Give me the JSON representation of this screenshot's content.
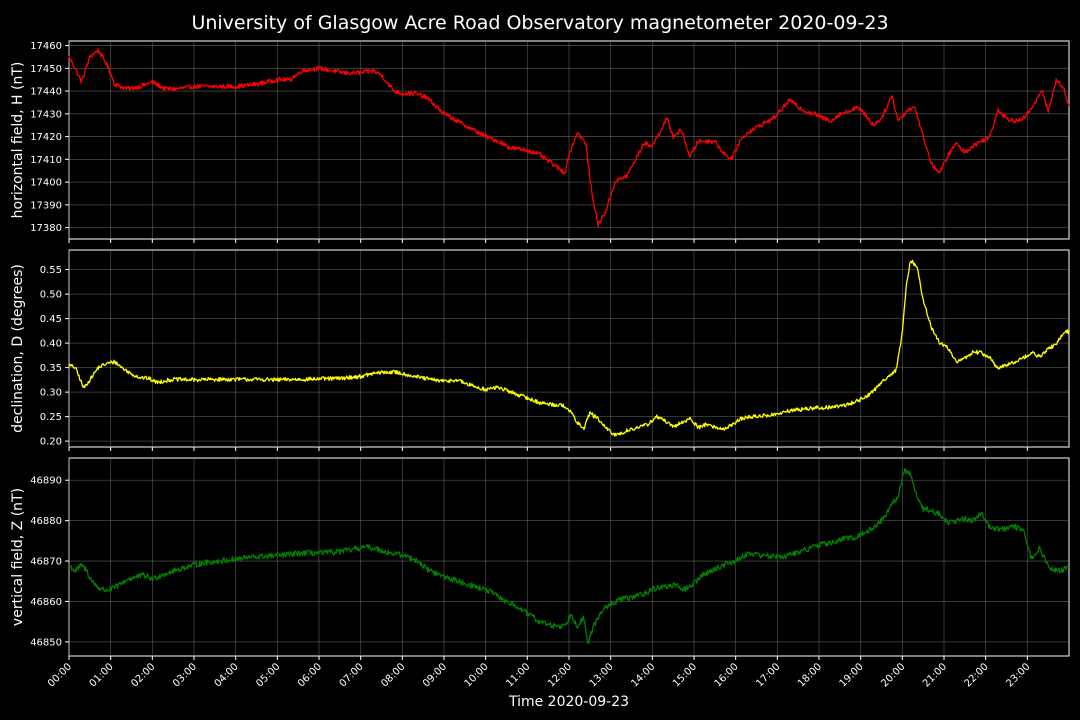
{
  "chart_data": {
    "type": "line",
    "title": "University of Glasgow Acre Road Observatory magnetometer 2020-09-23",
    "xlabel": "Time 2020-09-23",
    "x_unit": "hours",
    "xlim": [
      0,
      24
    ],
    "xticks": [
      0,
      1,
      2,
      3,
      4,
      5,
      6,
      7,
      8,
      9,
      10,
      11,
      12,
      13,
      14,
      15,
      16,
      17,
      18,
      19,
      20,
      21,
      22,
      23
    ],
    "xtick_labels": [
      "00:00",
      "01:00",
      "02:00",
      "03:00",
      "04:00",
      "05:00",
      "06:00",
      "07:00",
      "08:00",
      "09:00",
      "10:00",
      "11:00",
      "12:00",
      "13:00",
      "14:00",
      "15:00",
      "16:00",
      "17:00",
      "18:00",
      "19:00",
      "20:00",
      "21:00",
      "22:00",
      "23:00"
    ],
    "grid": true,
    "background": "#000000",
    "panels": [
      {
        "ylabel": "horizontal field, H (nT)",
        "color": "#ff0000",
        "ylim": [
          17375,
          17462
        ],
        "yticks": [
          17380,
          17390,
          17400,
          17410,
          17420,
          17430,
          17440,
          17450,
          17460
        ],
        "noise": 1.0,
        "x": [
          0,
          0.15,
          0.3,
          0.5,
          0.7,
          0.9,
          1.1,
          1.4,
          1.7,
          2.0,
          2.3,
          2.6,
          3.0,
          3.5,
          4.0,
          4.5,
          5.0,
          5.3,
          5.6,
          6.0,
          6.3,
          6.6,
          7.0,
          7.3,
          7.5,
          7.8,
          8.0,
          8.3,
          8.6,
          9.0,
          9.3,
          9.6,
          10.0,
          10.3,
          10.6,
          11.0,
          11.3,
          11.6,
          11.9,
          12.0,
          12.2,
          12.4,
          12.55,
          12.7,
          12.9,
          13.1,
          13.4,
          13.6,
          13.8,
          14.0,
          14.15,
          14.35,
          14.5,
          14.7,
          14.9,
          15.1,
          15.3,
          15.5,
          15.7,
          15.9,
          16.1,
          16.3,
          16.6,
          16.9,
          17.1,
          17.3,
          17.5,
          17.7,
          17.9,
          18.1,
          18.3,
          18.5,
          18.7,
          18.9,
          19.1,
          19.3,
          19.5,
          19.75,
          19.9,
          20.15,
          20.3,
          20.5,
          20.7,
          20.9,
          21.1,
          21.3,
          21.5,
          21.7,
          21.9,
          22.1,
          22.3,
          22.5,
          22.7,
          22.85,
          23.0,
          23.2,
          23.35,
          23.5,
          23.7,
          23.9,
          24.0
        ],
        "y": [
          17455,
          17450,
          17444,
          17455,
          17458,
          17452,
          17443,
          17441,
          17442,
          17444,
          17441,
          17441,
          17442,
          17442,
          17442,
          17443,
          17445,
          17445,
          17449,
          17450,
          17449,
          17448,
          17448,
          17449,
          17447,
          17440,
          17439,
          17439,
          17437,
          17430,
          17427,
          17424,
          17420,
          17418,
          17415,
          17414,
          17412,
          17408,
          17404,
          17412,
          17422,
          17417,
          17395,
          17381,
          17388,
          17400,
          17403,
          17410,
          17417,
          17416,
          17421,
          17428,
          17420,
          17423,
          17411,
          17418,
          17418,
          17418,
          17413,
          17410,
          17418,
          17422,
          17425,
          17428,
          17432,
          17436,
          17433,
          17431,
          17430,
          17428,
          17427,
          17430,
          17431,
          17433,
          17430,
          17425,
          17428,
          17438,
          17427,
          17432,
          17433,
          17420,
          17408,
          17404,
          17412,
          17417,
          17413,
          17416,
          17418,
          17420,
          17432,
          17428,
          17427,
          17427,
          17430,
          17435,
          17441,
          17431,
          17445,
          17440,
          17433
        ]
      },
      {
        "ylabel": "declination, D (degrees)",
        "color": "#ffff00",
        "ylim": [
          0.188,
          0.59
        ],
        "yticks": [
          0.2,
          0.25,
          0.3,
          0.35,
          0.4,
          0.45,
          0.5,
          0.55
        ],
        "ytick_labels": [
          "0.20",
          "0.25",
          "0.30",
          "0.35",
          "0.40",
          "0.45",
          "0.50",
          "0.55"
        ],
        "noise": 0.004,
        "x": [
          0,
          0.15,
          0.25,
          0.35,
          0.5,
          0.7,
          0.9,
          1.1,
          1.3,
          1.5,
          1.7,
          1.9,
          2.1,
          2.5,
          3.0,
          3.5,
          4.0,
          4.5,
          5.0,
          5.5,
          6.0,
          6.5,
          7.0,
          7.3,
          7.5,
          7.8,
          8.0,
          8.3,
          8.6,
          9.0,
          9.3,
          9.6,
          10.0,
          10.3,
          10.6,
          11.0,
          11.3,
          11.6,
          11.9,
          12.05,
          12.2,
          12.35,
          12.5,
          12.7,
          12.9,
          13.1,
          13.3,
          13.5,
          13.7,
          13.9,
          14.1,
          14.3,
          14.5,
          14.7,
          14.9,
          15.1,
          15.3,
          15.5,
          15.7,
          15.9,
          16.1,
          16.4,
          16.7,
          17.0,
          17.3,
          17.6,
          17.9,
          18.1,
          18.4,
          18.7,
          19.0,
          19.2,
          19.4,
          19.55,
          19.7,
          19.85,
          20.0,
          20.1,
          20.2,
          20.35,
          20.5,
          20.7,
          20.9,
          21.1,
          21.3,
          21.5,
          21.7,
          21.9,
          22.1,
          22.3,
          22.5,
          22.7,
          22.9,
          23.1,
          23.3,
          23.5,
          23.7,
          23.9,
          24.0
        ],
        "y": [
          0.355,
          0.35,
          0.33,
          0.308,
          0.325,
          0.35,
          0.358,
          0.362,
          0.348,
          0.337,
          0.33,
          0.328,
          0.32,
          0.326,
          0.325,
          0.326,
          0.326,
          0.326,
          0.325,
          0.326,
          0.327,
          0.328,
          0.332,
          0.338,
          0.34,
          0.341,
          0.338,
          0.332,
          0.327,
          0.322,
          0.325,
          0.315,
          0.305,
          0.31,
          0.3,
          0.288,
          0.278,
          0.275,
          0.272,
          0.258,
          0.238,
          0.225,
          0.258,
          0.245,
          0.225,
          0.212,
          0.218,
          0.225,
          0.228,
          0.235,
          0.25,
          0.242,
          0.228,
          0.238,
          0.246,
          0.228,
          0.235,
          0.228,
          0.225,
          0.232,
          0.245,
          0.25,
          0.252,
          0.255,
          0.262,
          0.265,
          0.268,
          0.268,
          0.27,
          0.275,
          0.285,
          0.295,
          0.31,
          0.325,
          0.335,
          0.345,
          0.42,
          0.52,
          0.57,
          0.555,
          0.49,
          0.43,
          0.4,
          0.39,
          0.36,
          0.37,
          0.382,
          0.38,
          0.37,
          0.348,
          0.355,
          0.362,
          0.37,
          0.38,
          0.372,
          0.388,
          0.398,
          0.425,
          0.422
        ]
      },
      {
        "ylabel": "vertical field, Z (nT)",
        "color": "#008000",
        "ylim": [
          46846.5,
          46895.5
        ],
        "yticks": [
          46850,
          46860,
          46870,
          46880,
          46890
        ],
        "noise": 0.7,
        "x": [
          0,
          0.15,
          0.3,
          0.4,
          0.55,
          0.7,
          0.85,
          1.0,
          1.2,
          1.4,
          1.6,
          1.8,
          2.0,
          2.2,
          2.5,
          2.8,
          3.2,
          3.6,
          4.0,
          4.4,
          4.8,
          5.2,
          5.6,
          6.0,
          6.4,
          6.8,
          7.1,
          7.4,
          7.7,
          8.0,
          8.3,
          8.6,
          8.9,
          9.2,
          9.5,
          9.8,
          10.1,
          10.4,
          10.7,
          11.0,
          11.3,
          11.6,
          11.9,
          12.05,
          12.2,
          12.35,
          12.45,
          12.6,
          12.8,
          13.0,
          13.2,
          13.5,
          13.8,
          14.0,
          14.2,
          14.5,
          14.8,
          15.0,
          15.2,
          15.5,
          15.8,
          16.0,
          16.3,
          16.6,
          17.0,
          17.3,
          17.6,
          18.0,
          18.3,
          18.6,
          18.9,
          19.2,
          19.5,
          19.75,
          19.9,
          20.05,
          20.2,
          20.35,
          20.5,
          20.7,
          20.9,
          21.1,
          21.3,
          21.5,
          21.7,
          21.9,
          22.1,
          22.3,
          22.5,
          22.7,
          22.9,
          23.1,
          23.3,
          23.45,
          23.6,
          23.8,
          24.0
        ],
        "y": [
          46869,
          46867.5,
          46869,
          46868,
          46865,
          46863.5,
          46862.8,
          46863,
          46864,
          46865.5,
          46866,
          46866.5,
          46865.5,
          46866.5,
          46867.5,
          46868.5,
          46869.5,
          46870,
          46870.5,
          46871,
          46871.2,
          46871.5,
          46872,
          46872,
          46872.2,
          46872.8,
          46873.5,
          46873,
          46872,
          46871.5,
          46870.5,
          46868,
          46866.5,
          46865.5,
          46864.5,
          46863.5,
          46862.5,
          46860.5,
          46859,
          46857,
          46855,
          46854,
          46854,
          46857,
          46854,
          46856,
          46849.5,
          46854,
          46858,
          46859,
          46860.5,
          46861,
          46862,
          46863,
          46863.5,
          46864,
          46863,
          46864.5,
          46866.5,
          46868,
          46869.5,
          46870,
          46872,
          46871.5,
          46871,
          46871.5,
          46872.5,
          46874,
          46874.5,
          46875.5,
          46876,
          46877.5,
          46880,
          46884,
          46886,
          46892.5,
          46891.5,
          46886,
          46883,
          46882.5,
          46881.5,
          46879.5,
          46880,
          46880.5,
          46880,
          46882,
          46878.5,
          46878,
          46878,
          46878.5,
          46877.5,
          46870.5,
          46873.5,
          46869.5,
          46868,
          46867.5,
          46868.5
        ]
      }
    ]
  }
}
